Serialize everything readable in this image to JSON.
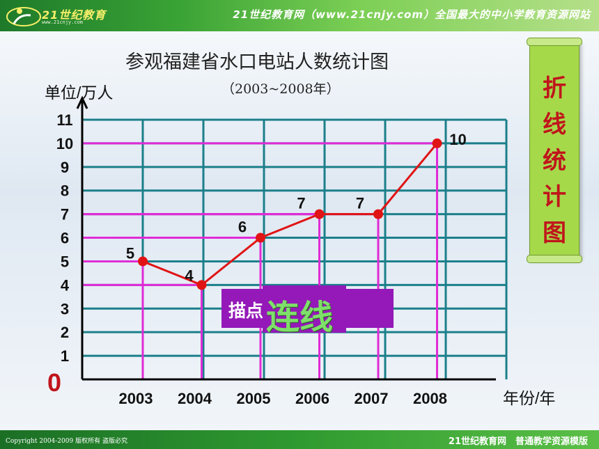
{
  "header": {
    "logo_text": "21世纪教育",
    "logo_url": "www.21cnjy.com",
    "slogan": "21世纪教育网（www.21cnjy.com）全国最大的中小学教育资源网站"
  },
  "footer": {
    "copyright": "Copyright 2004-2009 版权所有 盗版必究",
    "right_text": "21世纪教育网　普通教学资源模版"
  },
  "side_label": {
    "chars": [
      "折",
      "线",
      "统",
      "计",
      "图"
    ]
  },
  "overlay": {
    "back_text": "描点 数据",
    "front_text": "连线"
  },
  "colors": {
    "grid": "#1b7f8a",
    "highlight": "#e02bd6",
    "line": "#e01414",
    "label_box": "#9419b8",
    "side_label": "#a6d94a"
  },
  "chart_data": {
    "type": "line",
    "title": "参观福建省水口电站人数统计图",
    "subtitle": "（2003~2008年）",
    "ylabel": "单位/万人",
    "xlabel": "年份/年",
    "categories": [
      "2003",
      "2004",
      "2005",
      "2006",
      "2007",
      "2008"
    ],
    "values": [
      5,
      4,
      6,
      7,
      7,
      10
    ],
    "yticks": [
      "0",
      "1",
      "2",
      "3",
      "4",
      "5",
      "6",
      "7",
      "8",
      "9",
      "10",
      "11"
    ],
    "ylim": [
      0,
      11
    ],
    "grid": true,
    "data_labels": [
      "5",
      "4",
      "6",
      "7",
      "7",
      "10"
    ]
  }
}
